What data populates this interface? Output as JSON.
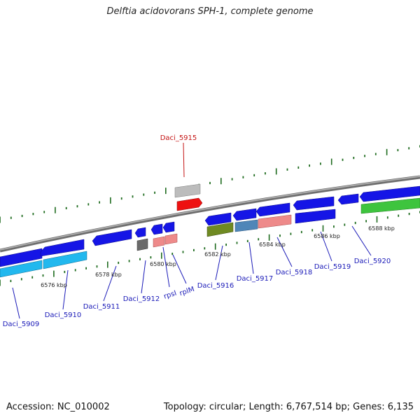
{
  "title": "Delftia acidovorans SPH-1, complete genome",
  "footer": {
    "accession": "Accession: NC_010002",
    "summary": "Topology: circular; Length: 6,767,514 bp; Genes: 6,135"
  },
  "colors": {
    "backbone": "#8c8c8c",
    "tick": "#1e6b1e",
    "gene_blue": "#1515e6",
    "gene_cyan": "#22b8ee",
    "gene_green": "#3ec43e",
    "gene_red": "#ee1111",
    "gene_pink": "#ee8a8a",
    "gene_olive": "#6f8a22",
    "gene_steel": "#4f86b8",
    "gene_gray": "#bcbcbc",
    "gene_darkgray": "#6a6a6a",
    "label_blue": "#1a1ab8",
    "label_red": "#c41414",
    "label_dark": "#222222"
  },
  "scale_labels": [
    "6576 kbp",
    "6578 kbp",
    "6580 kbp",
    "6582 kbp",
    "6584 kbp",
    "6586 kbp",
    "6588 kbp"
  ],
  "gene_labels": [
    "Daci_5909",
    "Daci_5910",
    "Daci_5911",
    "Daci_5912",
    "rpsI",
    "rplM",
    "Daci_5915",
    "Daci_5916",
    "Daci_5917",
    "Daci_5918",
    "Daci_5919",
    "Daci_5920"
  ]
}
